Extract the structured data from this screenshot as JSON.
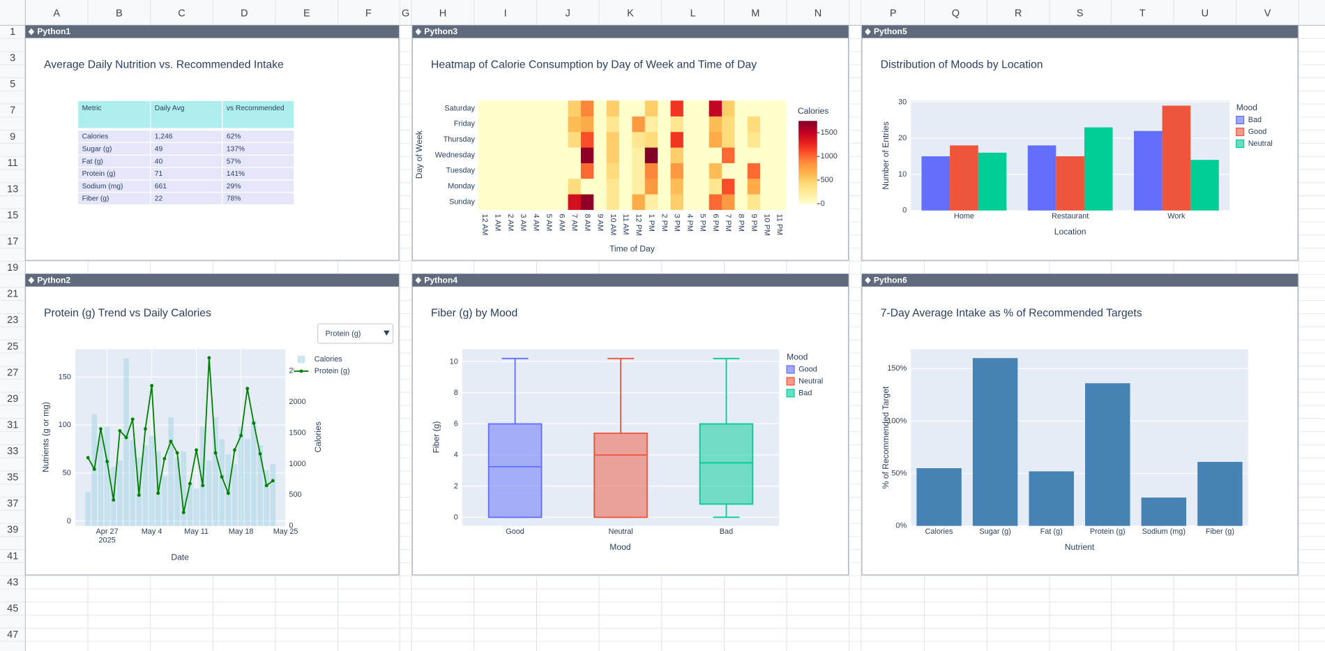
{
  "spreadsheet": {
    "columns": [
      "A",
      "B",
      "C",
      "D",
      "E",
      "F",
      "G",
      "H",
      "I",
      "J",
      "K",
      "L",
      "M",
      "N",
      "P",
      "Q",
      "R",
      "S",
      "T",
      "U",
      "V"
    ],
    "rows": [
      "1",
      "3",
      "5",
      "7",
      "9",
      "11",
      "13",
      "15",
      "17",
      "19",
      "21",
      "23",
      "25",
      "27",
      "29",
      "31",
      "33",
      "35",
      "37",
      "39",
      "41",
      "43",
      "45",
      "47"
    ]
  },
  "panels": [
    "Python1",
    "Python2",
    "Python3",
    "Python4",
    "Python5",
    "Python6"
  ],
  "chart_data": [
    {
      "type": "table",
      "title": "Average Daily Nutrition vs. Recommended Intake",
      "columns": [
        "Metric",
        "Daily Avg",
        "vs Recommended"
      ],
      "rows": [
        [
          "Calories",
          "1,246",
          "62%"
        ],
        [
          "Sugar (g)",
          "49",
          "137%"
        ],
        [
          "Fat (g)",
          "40",
          "57%"
        ],
        [
          "Protein (g)",
          "71",
          "141%"
        ],
        [
          "Sodium (mg)",
          "661",
          "29%"
        ],
        [
          "Fiber (g)",
          "22",
          "78%"
        ]
      ]
    },
    {
      "type": "combo",
      "title": "Protein (g) Trend vs Daily Calories",
      "dropdown": "Protein (g)",
      "x_label": "Date",
      "y_label": "Nutrients (g or mg)",
      "y2_label": "Calories",
      "x": [
        "2025-04-24",
        "2025-04-25",
        "2025-04-26",
        "2025-04-27",
        "2025-04-28",
        "2025-04-29",
        "2025-04-30",
        "2025-05-01",
        "2025-05-02",
        "2025-05-03",
        "2025-05-04",
        "2025-05-05",
        "2025-05-06",
        "2025-05-07",
        "2025-05-08",
        "2025-05-09",
        "2025-05-10",
        "2025-05-11",
        "2025-05-12",
        "2025-05-13",
        "2025-05-14",
        "2025-05-15",
        "2025-05-16",
        "2025-05-17",
        "2025-05-18",
        "2025-05-19",
        "2025-05-20",
        "2025-05-21",
        "2025-05-22",
        "2025-05-23"
      ],
      "xlim": [
        "2025-04-22",
        "2025-05-25"
      ],
      "xticks": [
        {
          "value": "2025-04-27",
          "label": "Apr 27\n2025"
        },
        {
          "value": "2025-05-04",
          "label": "May 4"
        },
        {
          "value": "2025-05-11",
          "label": "May 11"
        },
        {
          "value": "2025-05-18",
          "label": "May 18"
        },
        {
          "value": "2025-05-25",
          "label": "May 25"
        }
      ],
      "ylim": [
        -5,
        179
      ],
      "yticks": [
        0,
        50,
        100,
        150
      ],
      "y2lim": [
        0,
        2850
      ],
      "y2ticks": [
        0,
        500,
        1000,
        1500,
        2000,
        2500
      ],
      "grid": true,
      "series": [
        {
          "name": "Calories",
          "type": "bar",
          "axis": "y2",
          "color": "#add8e6",
          "values": [
            550,
            1800,
            1450,
            1600,
            950,
            1050,
            2700,
            1380,
            1100,
            1300,
            1450,
            1200,
            800,
            1750,
            1100,
            1200,
            700,
            600,
            1600,
            1050,
            1750,
            1400,
            1150,
            1000,
            1600,
            1400,
            1700,
            1300,
            900,
            1000
          ]
        },
        {
          "name": "Protein (g)",
          "type": "line",
          "color": "#008000",
          "values": [
            66,
            54,
            96,
            62,
            22,
            94,
            87,
            106,
            27,
            96,
            141,
            29,
            65,
            83,
            71,
            9,
            39,
            74,
            37,
            170,
            71,
            46,
            29,
            74,
            89,
            138,
            102,
            70,
            37,
            42
          ]
        }
      ]
    },
    {
      "type": "heatmap",
      "title": "Heatmap of Calorie Consumption by Day of Week and Time of Day",
      "x_label": "Time of Day",
      "y_label": "Day of Week",
      "colorbar_title": "Calories",
      "colorscale": "YlOrRd",
      "zlim": [
        0,
        1750
      ],
      "zticks": [
        0,
        500,
        1000,
        1500
      ],
      "x": [
        "12 AM",
        "1 AM",
        "2 AM",
        "3 AM",
        "4 AM",
        "5 AM",
        "6 AM",
        "7 AM",
        "8 AM",
        "9 AM",
        "10 AM",
        "11 AM",
        "12 PM",
        "1 PM",
        "2 PM",
        "3 PM",
        "4 PM",
        "5 PM",
        "6 PM",
        "7 PM",
        "8 PM",
        "9 PM",
        "10 PM",
        "11 PM"
      ],
      "y": [
        "Sunday",
        "Monday",
        "Tuesday",
        "Wednesday",
        "Thursday",
        "Friday",
        "Saturday"
      ],
      "z": [
        [
          0,
          0,
          0,
          0,
          0,
          0,
          0,
          1400,
          1700,
          0,
          300,
          0,
          700,
          200,
          0,
          500,
          0,
          0,
          1000,
          800,
          0,
          300,
          0,
          0
        ],
        [
          0,
          0,
          0,
          0,
          0,
          0,
          0,
          400,
          0,
          0,
          300,
          0,
          200,
          800,
          0,
          600,
          0,
          0,
          300,
          1100,
          0,
          700,
          0,
          0
        ],
        [
          0,
          0,
          0,
          0,
          0,
          0,
          0,
          0,
          1000,
          0,
          400,
          0,
          200,
          900,
          0,
          800,
          0,
          0,
          600,
          0,
          0,
          1000,
          0,
          0
        ],
        [
          0,
          0,
          0,
          0,
          0,
          0,
          0,
          0,
          1700,
          0,
          500,
          0,
          200,
          1750,
          0,
          500,
          0,
          0,
          0,
          1000,
          0,
          0,
          0,
          0
        ],
        [
          0,
          0,
          0,
          0,
          0,
          0,
          0,
          400,
          1100,
          0,
          500,
          0,
          300,
          400,
          0,
          1200,
          0,
          0,
          700,
          400,
          0,
          300,
          0,
          0
        ],
        [
          0,
          0,
          0,
          0,
          0,
          0,
          0,
          600,
          700,
          0,
          300,
          0,
          800,
          200,
          0,
          300,
          0,
          0,
          600,
          400,
          0,
          400,
          0,
          0
        ],
        [
          0,
          0,
          0,
          0,
          0,
          0,
          0,
          500,
          900,
          0,
          500,
          0,
          0,
          500,
          0,
          1200,
          0,
          0,
          1500,
          500,
          0,
          0,
          0,
          0
        ]
      ]
    },
    {
      "type": "box",
      "title": "Fiber (g) by Mood",
      "x_label": "Mood",
      "y_label": "Fiber (g)",
      "legend_title": "Mood",
      "categories": [
        "Good",
        "Neutral",
        "Bad"
      ],
      "ylim": [
        -0.55,
        10.8
      ],
      "yticks": [
        0,
        2,
        4,
        6,
        8,
        10
      ],
      "grid": true,
      "series": [
        {
          "name": "Good",
          "color": "#636efa",
          "min": 0,
          "q1": 0,
          "median": 3.25,
          "q3": 6,
          "max": 10.2
        },
        {
          "name": "Neutral",
          "color": "#ef553b",
          "min": 0,
          "q1": 0,
          "median": 4,
          "q3": 5.4,
          "max": 10.2
        },
        {
          "name": "Bad",
          "color": "#00cc96",
          "min": 0,
          "q1": 0.85,
          "median": 3.5,
          "q3": 6,
          "max": 10.2
        }
      ]
    },
    {
      "type": "bar",
      "title": "Distribution of Moods by Location",
      "x_label": "Location",
      "y_label": "Number of Entries",
      "legend_title": "Mood",
      "categories": [
        "Home",
        "Restaurant",
        "Work"
      ],
      "ylim": [
        0,
        30.4
      ],
      "yticks": [
        0,
        10,
        20,
        30
      ],
      "grid": true,
      "series": [
        {
          "name": "Bad",
          "color": "#636efa",
          "values": [
            15,
            18,
            22
          ]
        },
        {
          "name": "Good",
          "color": "#ef553b",
          "values": [
            18,
            15,
            29
          ]
        },
        {
          "name": "Neutral",
          "color": "#00cc96",
          "values": [
            16,
            23,
            14
          ]
        }
      ]
    },
    {
      "type": "bar",
      "title": "7-Day Average Intake as % of Recommended Targets",
      "x_label": "Nutrient",
      "y_label": "% of Recommended Target",
      "categories": [
        "Calories",
        "Sugar (g)",
        "Fat (g)",
        "Protein (g)",
        "Sodium (mg)",
        "Fiber (g)"
      ],
      "values": [
        55,
        160,
        52,
        136,
        27,
        61
      ],
      "color": "#4682b4",
      "ylim": [
        0,
        168.5
      ],
      "yticks": [
        {
          "value": 0,
          "label": "0%"
        },
        {
          "value": 50,
          "label": "50%"
        },
        {
          "value": 100,
          "label": "100%"
        },
        {
          "value": 150,
          "label": "150%"
        }
      ],
      "grid": true
    }
  ]
}
